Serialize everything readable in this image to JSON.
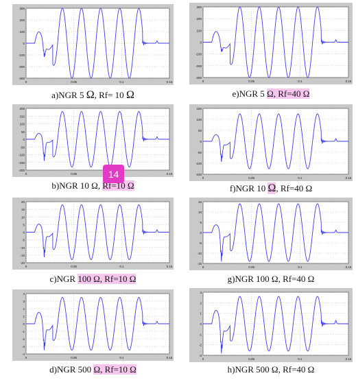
{
  "colors": {
    "signal": "#3a3af0",
    "plot_bg": "#ffffff",
    "frame_bg": "#c9c9c9",
    "grid": "#b0b0b0",
    "highlight": "#f6c6ee",
    "badge": "#e23ac4"
  },
  "badge": {
    "label": "14"
  },
  "panels": [
    {
      "id": "a",
      "caption": [
        {
          "t": "a)NGR 5 "
        },
        {
          "t": "Ω",
          "o": 1
        },
        {
          "t": ", Rf= 10 "
        },
        {
          "t": "Ω",
          "o": 1
        }
      ]
    },
    {
      "id": "e",
      "caption": [
        {
          "t": "e)NGR 5 "
        },
        {
          "t": "Ω, Rf=40 Ω",
          "h": 1
        }
      ]
    },
    {
      "id": "b",
      "caption": [
        {
          "t": "b)NGR 10 Ω, "
        },
        {
          "t": "Rf=10 Ω",
          "h": 1
        }
      ]
    },
    {
      "id": "f",
      "caption": [
        {
          "t": "f)NGR 10 "
        },
        {
          "t": "Ω",
          "h": 1,
          "o": 1
        },
        {
          "t": ", Rf=40 Ω"
        }
      ]
    },
    {
      "id": "c",
      "caption": [
        {
          "t": "c)NGR "
        },
        {
          "t": "100 Ω, Rf=10 Ω",
          "h": 1
        }
      ]
    },
    {
      "id": "g",
      "caption": [
        {
          "t": "g)NGR 100 Ω, Rf=40 Ω"
        }
      ]
    },
    {
      "id": "d",
      "caption": [
        {
          "t": "d)NGR 500 "
        },
        {
          "t": "Ω, Rf=10 Ω",
          "h": 1
        }
      ]
    },
    {
      "id": "h",
      "caption": [
        {
          "t": "h)NGR 500 Ω, Rf=40 Ω"
        }
      ]
    }
  ],
  "chart_data": [
    {
      "id": "a",
      "type": "line",
      "xlim": [
        0,
        0.15
      ],
      "xticks": [
        0,
        0.05,
        0.1,
        0.15
      ],
      "xtick_labels": [
        "0",
        "0.05",
        "0.1",
        "0.15"
      ],
      "ylim": [
        -300,
        300
      ],
      "yticks": [
        -300,
        -200,
        -100,
        0,
        100,
        200,
        300
      ],
      "ytick_labels": [
        "-300",
        "-200",
        "-100",
        "0",
        "100",
        "200",
        "300"
      ],
      "signal": {
        "pre_t": 0.009,
        "fault_t": 0.028,
        "clear_t": 0.122,
        "end_peak": 0.103,
        "amp": 300,
        "prefault_amp": 130,
        "dip": -100,
        "tail_amp": 25
      }
    },
    {
      "id": "e",
      "type": "line",
      "xlim": [
        0,
        0.15
      ],
      "xticks": [
        0,
        0.05,
        0.1,
        0.15
      ],
      "xtick_labels": [
        "0",
        "0.05",
        "0.1",
        "0.15"
      ],
      "ylim": [
        -300,
        300
      ],
      "yticks": [
        -300,
        -200,
        -100,
        0,
        100,
        200,
        300
      ],
      "ytick_labels": [
        "-300",
        "-200",
        "-100",
        "0",
        "100",
        "200",
        "300"
      ],
      "signal": {
        "pre_t": 0.009,
        "fault_t": 0.028,
        "clear_t": 0.122,
        "end_peak": 0.103,
        "amp": 300,
        "prefault_amp": 120,
        "dip": -70,
        "tail_amp": 25
      }
    },
    {
      "id": "b",
      "type": "line",
      "xlim": [
        0,
        0.15
      ],
      "xticks": [
        0,
        0.05,
        0.1,
        0.15
      ],
      "xtick_labels": [
        "0",
        "0.05",
        "0.1",
        "0.15"
      ],
      "ylim": [
        -200,
        200
      ],
      "yticks": [
        -200,
        -150,
        -100,
        -50,
        0,
        50,
        100,
        150,
        200
      ],
      "ytick_labels": [
        "-200",
        "-150",
        "-100",
        "-50",
        "0",
        "50",
        "100",
        "150",
        "200"
      ],
      "signal": {
        "pre_t": 0.009,
        "fault_t": 0.028,
        "clear_t": 0.122,
        "end_peak": 0.103,
        "amp": 180,
        "prefault_amp": 50,
        "dip": -120,
        "tail_amp": 20
      }
    },
    {
      "id": "f",
      "type": "line",
      "xlim": [
        0,
        0.15
      ],
      "xticks": [
        0,
        0.05,
        0.1,
        0.15
      ],
      "xtick_labels": [
        "0",
        "0.05",
        "0.1",
        "0.15"
      ],
      "ylim": [
        -150,
        150
      ],
      "yticks": [
        -150,
        -100,
        -50,
        0,
        50,
        100,
        150
      ],
      "ytick_labels": [
        "-150",
        "-100",
        "-50",
        "0",
        "50",
        "100",
        "150"
      ],
      "signal": {
        "pre_t": 0.009,
        "fault_t": 0.028,
        "clear_t": 0.122,
        "end_peak": 0.103,
        "amp": 125,
        "prefault_amp": 40,
        "dip": -80,
        "tail_amp": 15
      }
    },
    {
      "id": "c",
      "type": "line",
      "xlim": [
        0,
        0.15
      ],
      "xticks": [
        0,
        0.05,
        0.1,
        0.15
      ],
      "xtick_labels": [
        "0",
        "0.05",
        "0.1",
        "0.15"
      ],
      "ylim": [
        -20,
        20
      ],
      "yticks": [
        -20,
        -15,
        -10,
        -5,
        0,
        5,
        10,
        15,
        20
      ],
      "ytick_labels": [
        "-20",
        "-15",
        "-10",
        "-5",
        "0",
        "5",
        "10",
        "15",
        "20"
      ],
      "signal": {
        "pre_t": 0.009,
        "fault_t": 0.028,
        "clear_t": 0.122,
        "end_peak": 0.103,
        "amp": 18,
        "prefault_amp": 7,
        "dip": -14,
        "tail_amp": 2
      }
    },
    {
      "id": "g",
      "type": "line",
      "xlim": [
        0,
        0.15
      ],
      "xticks": [
        0,
        0.05,
        0.1,
        0.15
      ],
      "xtick_labels": [
        "0",
        "0.05",
        "0.1",
        "0.15"
      ],
      "ylim": [
        -15,
        15
      ],
      "yticks": [
        -15,
        -10,
        -5,
        0,
        5,
        10,
        15
      ],
      "ytick_labels": [
        "-15",
        "-10",
        "-5",
        "0",
        "5",
        "10",
        "15"
      ],
      "signal": {
        "pre_t": 0.009,
        "fault_t": 0.028,
        "clear_t": 0.122,
        "end_peak": 0.103,
        "amp": 14,
        "prefault_amp": 5,
        "dip": -12,
        "tail_amp": 1.5
      }
    },
    {
      "id": "d",
      "type": "line",
      "xlim": [
        0,
        0.15
      ],
      "xticks": [
        0,
        0.05,
        0.1,
        0.15
      ],
      "xtick_labels": [
        "0",
        "0.05",
        "0.1",
        "0.15"
      ],
      "ylim": [
        -4,
        4
      ],
      "yticks": [
        -4,
        -3,
        -2,
        -1,
        0,
        1,
        2,
        3,
        4
      ],
      "ytick_labels": [
        "-4",
        "-3",
        "-2",
        "-1",
        "0",
        "1",
        "2",
        "3",
        "4"
      ],
      "signal": {
        "pre_t": 0.009,
        "fault_t": 0.028,
        "clear_t": 0.122,
        "end_peak": 0.103,
        "amp": 3.5,
        "prefault_amp": 2,
        "dip": -3,
        "tail_amp": 0.4
      }
    },
    {
      "id": "h",
      "type": "line",
      "xlim": [
        0,
        0.15
      ],
      "xticks": [
        0,
        0.05,
        0.1,
        0.15
      ],
      "xtick_labels": [
        "0",
        "0.05",
        "0.1",
        "0.15"
      ],
      "ylim": [
        -3,
        3
      ],
      "yticks": [
        -3,
        -2,
        -1,
        0,
        1,
        2,
        3
      ],
      "ytick_labels": [
        "-3",
        "-2",
        "-1",
        "0",
        "1",
        "2",
        "3"
      ],
      "signal": {
        "pre_t": 0.009,
        "fault_t": 0.028,
        "clear_t": 0.122,
        "end_peak": 0.103,
        "amp": 2.6,
        "prefault_amp": 1.7,
        "dip": -2.4,
        "tail_amp": 0.4
      }
    }
  ]
}
